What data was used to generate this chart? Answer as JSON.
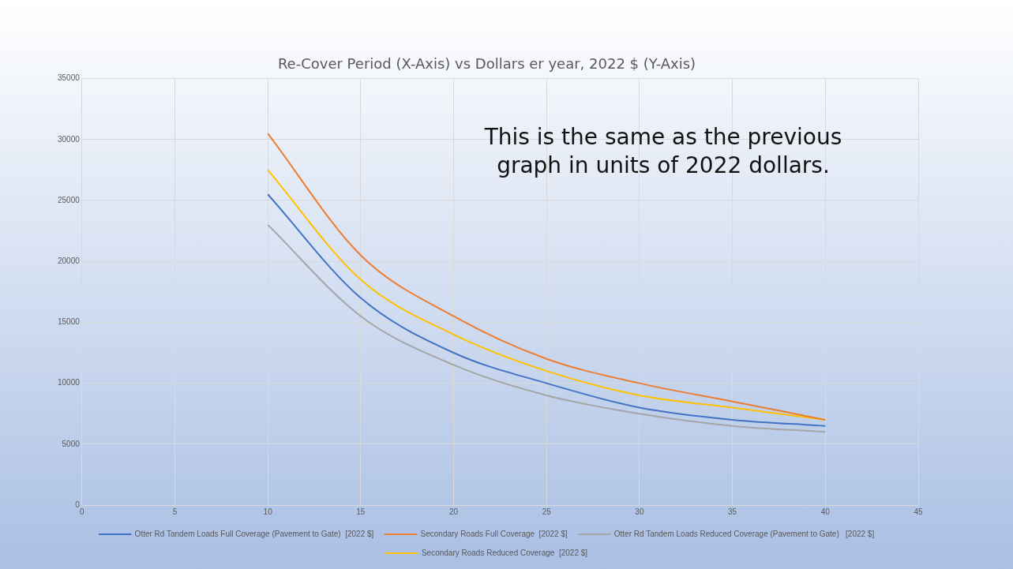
{
  "chart_data": {
    "type": "line",
    "title": "Re-Cover Period (X-Axis) vs Dollars er year, 2022 $ (Y-Axis)",
    "annotations": [
      "This is the same as the previous graph in units of 2022 dollars."
    ],
    "x": [
      10,
      15,
      20,
      25,
      30,
      35,
      40
    ],
    "series": [
      {
        "name": "Otter Rd Tandem Loads Full Coverage (Pavement to Gate)  [2022 $]",
        "color": "#4472c4",
        "values": [
          25500,
          17000,
          12500,
          10000,
          8000,
          7000,
          6500
        ]
      },
      {
        "name": "Secondary Roads Full Coverage  [2022 $]",
        "color": "#ed7d31",
        "values": [
          30500,
          20500,
          15500,
          12000,
          10000,
          8500,
          7000
        ]
      },
      {
        "name": "Otter Rd Tandem Loads Reduced Coverage (Pavement to Gate)   [2022 $]",
        "color": "#a5a5a5",
        "values": [
          23000,
          15500,
          11500,
          9000,
          7500,
          6500,
          6000
        ]
      },
      {
        "name": "Secondary Roads Reduced Coverage  [2022 $]",
        "color": "#ffc000",
        "values": [
          27500,
          18500,
          14000,
          11000,
          9000,
          8000,
          7000
        ]
      }
    ],
    "xlim": [
      0,
      45
    ],
    "xticks": [
      0,
      5,
      10,
      15,
      20,
      25,
      30,
      35,
      40,
      45
    ],
    "ylim": [
      0,
      35000
    ],
    "yticks": [
      0,
      5000,
      10000,
      15000,
      20000,
      25000,
      30000,
      35000
    ],
    "grid": true,
    "legend": "bottom",
    "marker": "none",
    "line_style": "solid"
  }
}
